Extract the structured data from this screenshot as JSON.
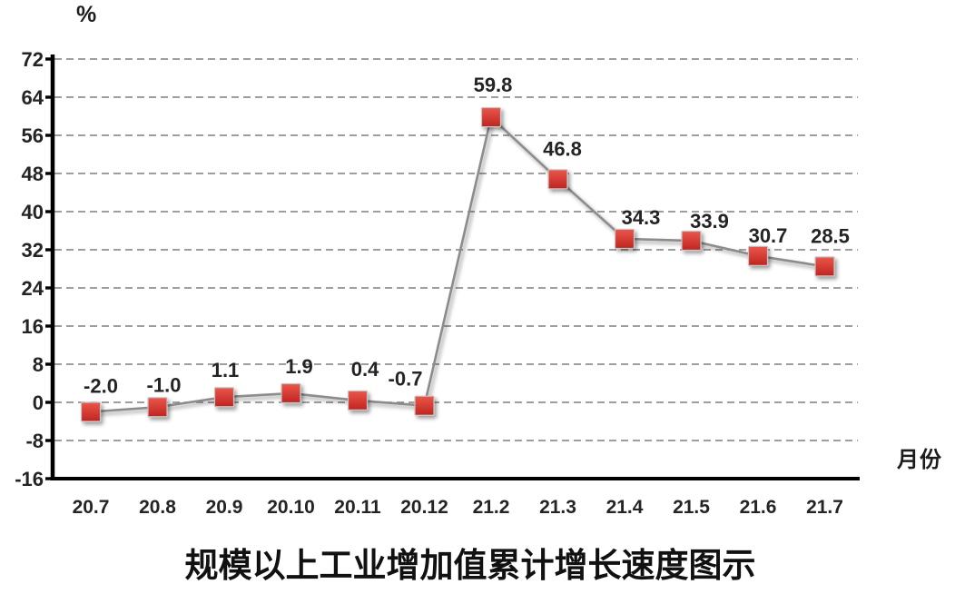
{
  "chart_data": {
    "type": "line",
    "title": "规模以上工业增加值累计增长速度图示",
    "y_unit_label": "%",
    "x_unit_label": "月份",
    "categories": [
      "20.7",
      "20.8",
      "20.9",
      "20.10",
      "20.11",
      "20.12",
      "21.2",
      "21.3",
      "21.4",
      "21.5",
      "21.6",
      "21.7"
    ],
    "series": [
      {
        "name": "规模以上工业增加值累计增长速度",
        "values": [
          -2.0,
          -1.0,
          1.1,
          1.9,
          0.4,
          -0.7,
          59.8,
          46.8,
          34.3,
          33.9,
          30.7,
          28.5
        ],
        "data_labels": [
          "-2.0",
          "-1.0",
          "1.1",
          "1.9",
          "0.4",
          "-0.7",
          "59.8",
          "46.8",
          "34.3",
          "33.9",
          "30.7",
          "28.5"
        ]
      }
    ],
    "y_ticks": [
      72,
      64,
      56,
      48,
      40,
      32,
      24,
      16,
      8,
      0,
      -8,
      -16
    ],
    "ylim": [
      -16,
      72
    ],
    "grid": "horizontal-dashed",
    "legend": "none",
    "marker_shape": "square",
    "colors": {
      "marker_fill_top": "#ea574b",
      "marker_fill_bottom": "#c02420",
      "marker_border": "#c6c6c6",
      "line": "#8c8c8c",
      "gridline": "#7f7f7f",
      "axis": "#000000",
      "text": "#242424"
    }
  }
}
